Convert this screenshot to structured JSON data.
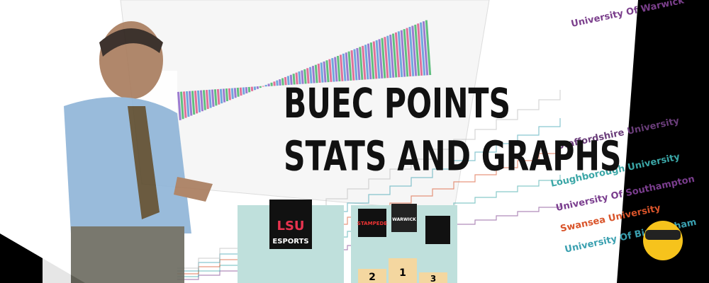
{
  "banner": {
    "title_lines": [
      "BUEC POINTS",
      "STATS AND GRAPHS"
    ]
  },
  "chart_labels": [
    "University Of Warwick",
    "Staffordshire University",
    "Loughborough University",
    "University Of Southampton",
    "Swansea University",
    "University Of Birmingham"
  ],
  "logos": {
    "lsu_top": "LSU",
    "lsu_bottom": "ESPORTS",
    "stampede": "STAMPEDE",
    "warwick": "WARWICK"
  },
  "podium": [
    "2",
    "1",
    "3"
  ]
}
